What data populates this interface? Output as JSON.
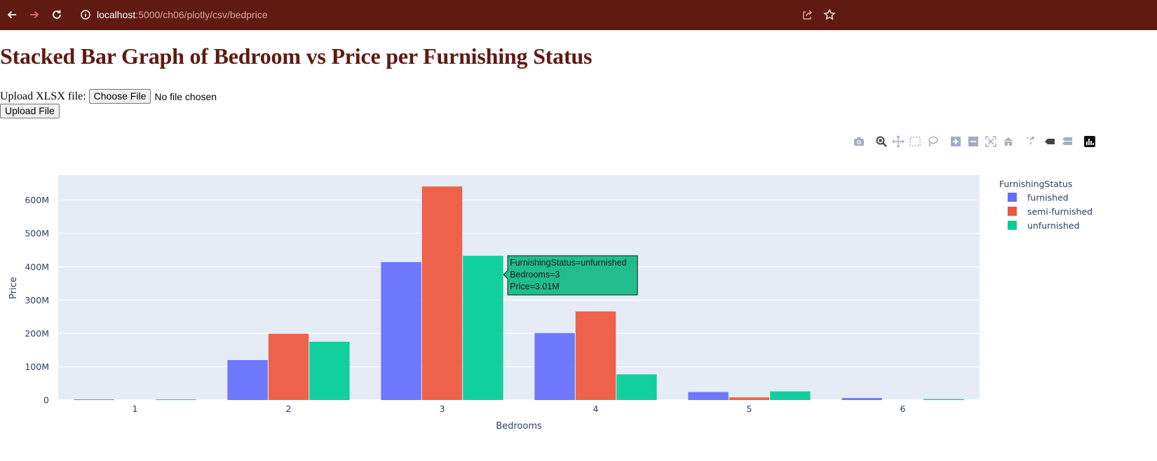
{
  "browser": {
    "url_host": "localhost",
    "url_path": ":5000/ch06/plotly/csv/bedprice"
  },
  "page": {
    "title": "Stacked Bar Graph of Bedroom vs Price per Furnishing Status",
    "upload_label": "Upload XLSX file:",
    "choose_file_label": "Choose File",
    "no_file_text": "No file chosen",
    "upload_button_label": "Upload File"
  },
  "modebar": {
    "icons": [
      "camera-icon",
      "zoom-icon",
      "pan-icon",
      "box-select-icon",
      "lasso-select-icon",
      "zoom-in-icon",
      "zoom-out-icon",
      "autoscale-icon",
      "reset-axes-icon",
      "spike-lines-icon",
      "hover-closest-icon",
      "hover-compare-icon",
      "plotly-logo-icon"
    ]
  },
  "chart_data": {
    "type": "bar",
    "barmode": "group",
    "xlabel": "Bedrooms",
    "ylabel": "Price",
    "categories": [
      "1",
      "2",
      "3",
      "4",
      "5",
      "6"
    ],
    "ylim": [
      0,
      675
    ],
    "yticks": [
      0,
      100,
      200,
      300,
      400,
      500,
      600
    ],
    "ytick_labels": [
      "0",
      "100M",
      "200M",
      "300M",
      "400M",
      "500M",
      "600M"
    ],
    "legend_title": "FurnishingStatus",
    "legend_position": "right",
    "grid": true,
    "series": [
      {
        "name": "furnished",
        "color": "#636efa",
        "values": [
          2,
          120,
          414,
          201,
          24,
          6
        ]
      },
      {
        "name": "semi-furnished",
        "color": "#ef553b",
        "values": [
          0,
          199,
          641,
          266,
          8,
          0
        ]
      },
      {
        "name": "unfurnished",
        "color": "#00cc96",
        "values": [
          2,
          175,
          433,
          77,
          26,
          3
        ]
      }
    ],
    "hover": {
      "lines": [
        "FurnishingStatus=unfurnished",
        "Bedrooms=3",
        "Price=3.01M"
      ],
      "color": "#22bd8c"
    }
  }
}
